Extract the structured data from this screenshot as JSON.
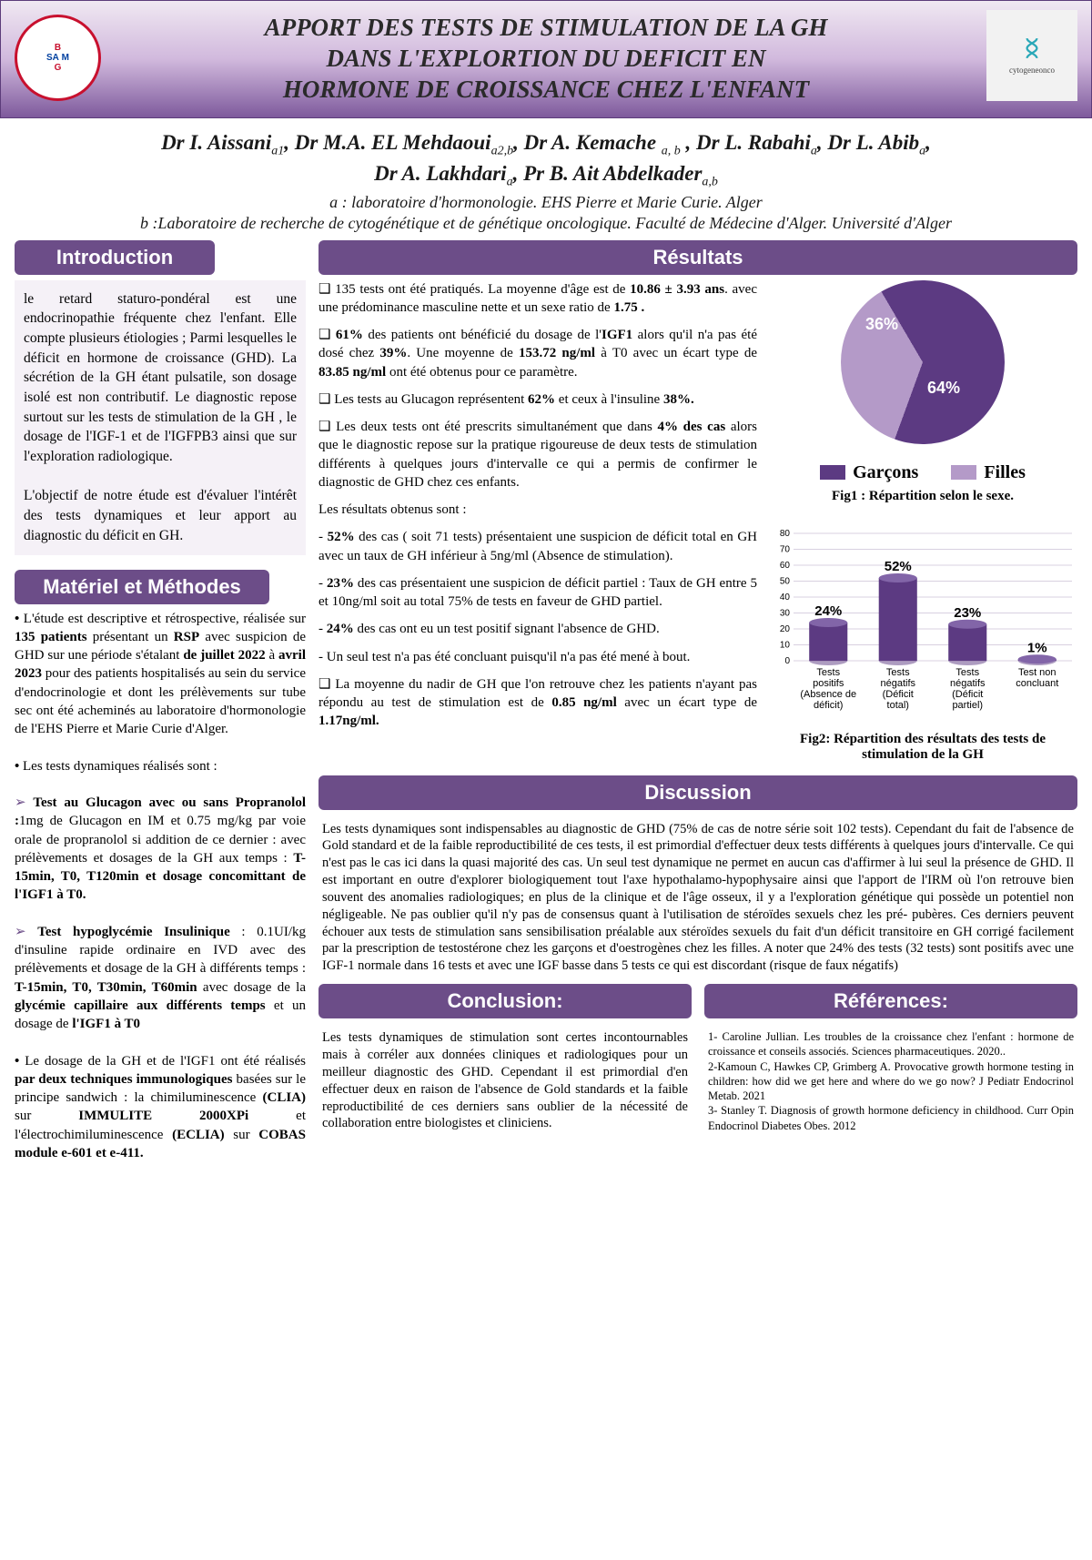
{
  "header": {
    "title_line1": "APPORT DES TESTS DE STIMULATION DE LA GH",
    "title_line2": "DANS L'EXPLORTION DU DEFICIT   EN",
    "title_line3": "HORMONE DE CROISSANCE CHEZ L'ENFANT",
    "logo_right_label": "cytogeneonco"
  },
  "authors": {
    "line1": "Dr I. Aissani",
    "a1": "a1",
    "line2": ", Dr M.A. EL Mehdaoui",
    "a2": "a2,b",
    "line3": ", Dr A. Kemache ",
    "a3": "a, b",
    "line4": " , Dr L. Rabahi",
    "line5": ", Dr L. Abib",
    "line6": "Dr A. Lakhdari",
    "line7": ", Pr B. Ait Abdelkader",
    "a_sub": "a",
    "ab_sub": "a,b",
    "affil_a": "a : laboratoire d'hormonologie. EHS Pierre et Marie Curie. Alger",
    "affil_b": "b :Laboratoire de recherche de cytogénétique et de génétique oncologique. Faculté de Médecine d'Alger. Université d'Alger"
  },
  "sections": {
    "intro_title": "Introduction",
    "intro_p1": "le retard staturo-pondéral est une endocrinopathie fréquente chez l'enfant. Elle compte plusieurs étiologies ; Parmi lesquelles le déficit en hormone de croissance (GHD). La sécrétion de la GH étant pulsatile, son dosage isolé est non contributif. Le diagnostic repose surtout sur les tests de stimulation de la GH , le dosage de l'IGF-1 et de l'IGFPB3 ainsi que sur l'exploration radiologique.",
    "intro_p2": "L'objectif de notre étude est d'évaluer l'intérêt des tests dynamiques et leur apport au diagnostic du déficit en GH.",
    "methods_title": "Matériel et Méthodes",
    "methods_b1a": "L'étude est descriptive et rétrospective, réalisée sur ",
    "methods_b1b": "135 patients",
    "methods_b1c": " présentant un ",
    "methods_b1d": "RSP",
    "methods_b1e": " avec suspicion de GHD sur une période s'étalant ",
    "methods_b1f": "de juillet 2022",
    "methods_b1g": " à ",
    "methods_b1h": "avril 2023",
    "methods_b1i": " pour des patients hospitalisés au sein du service d'endocrinologie et dont les prélèvements sur tube sec ont été acheminés au laboratoire d'hormonologie de l'EHS Pierre et Marie Curie d'Alger.",
    "methods_b2": "Les tests dynamiques réalisés sont :",
    "methods_t1a": "Test au Glucagon avec ou sans Propranolol :",
    "methods_t1b": "1mg de Glucagon en IM et 0.75 mg/kg par voie orale de propranolol si addition de ce dernier : avec prélèvements et dosages de la GH aux temps : ",
    "methods_t1c": "T-15min, T0, T120min et dosage concomittant de l'IGF1 à T0.",
    "methods_t2a": "Test hypoglycémie Insulinique",
    "methods_t2b": " : 0.1UI/kg d'insuline rapide ordinaire en IVD avec des prélèvements et dosage de la GH à différents temps : ",
    "methods_t2c": "T-15min, T0, T30min, T60min",
    "methods_t2d": " avec dosage de la ",
    "methods_t2e": "glycémie capillaire aux différents temps",
    "methods_t2f": " et un dosage de ",
    "methods_t2g": "l'IGF1 à T0",
    "methods_b3a": "Le dosage de la GH et de l'IGF1 ont été réalisés ",
    "methods_b3b": "par deux techniques immunologiques",
    "methods_b3c": " basées sur le principe sandwich : la chimiluminescence ",
    "methods_b3d": "(CLIA)",
    "methods_b3e": " sur ",
    "methods_b3f": "IMMULITE 2000XPi",
    "methods_b3g": " et l'électrochimiluminescence ",
    "methods_b3h": "(ECLIA)",
    "methods_b3i": " sur ",
    "methods_b3j": "COBAS module e-601 et e-411.",
    "results_title": "Résultats",
    "r1a": "135 tests ont été pratiqués. La moyenne d'âge est de ",
    "r1b": "10.86 ± 3.93 ans",
    "r1c": ". avec une prédominance masculine nette et un sexe ratio de ",
    "r1d": "1.75 .",
    "r2a": "61%",
    "r2b": " des patients ont bénéficié du dosage de l'",
    "r2c": "IGF1 ",
    "r2d": "alors qu'il n'a pas été dosé chez ",
    "r2e": "39%",
    "r2f": ". Une moyenne de ",
    "r2g": "153.72 ng/ml",
    "r2h": " à T0 avec un écart type de ",
    "r2i": "83.85 ng/ml",
    "r2j": " ont été obtenus pour ce paramètre.",
    "r3a": "Les tests au Glucagon représentent ",
    "r3b": "62%",
    "r3c": " et ceux à l'insuline ",
    "r3d": "38%.",
    "r4": "Les deux tests ont été prescrits simultanément que dans ",
    "r4b": "4% des cas",
    "r4c": " alors que le diagnostic repose sur la pratique rigoureuse de deux tests de stimulation différents à  quelques jours d'intervalle ce qui a permis de confirmer le diagnostic de GHD chez ces enfants.",
    "r5": "Les résultats obtenus sont :",
    "r6a": "52%",
    "r6b": " des cas ( soit 71 tests) présentaient une suspicion de déficit total en GH avec un taux de GH inférieur à 5ng/ml (Absence de stimulation).",
    "r7a": "23%",
    "r7b": " des cas présentaient une suspicion de déficit partiel : Taux de GH entre 5 et 10ng/ml soit au total 75% de tests en faveur de GHD partiel.",
    "r8a": "24%",
    "r8b": " des cas   ont eu un test positif signant l'absence de GHD.",
    "r9": "Un seul test n'a pas été concluant puisqu'il n'a pas été mené à bout.",
    "r10a": "La moyenne du nadir de GH que l'on retrouve chez les patients n'ayant pas répondu au test de stimulation est de ",
    "r10b": "0.85 ng/ml",
    "r10c": " avec un écart type de ",
    "r10d": "1.17ng/ml.",
    "fig1_caption": "Fig1 : Répartition selon le sexe.",
    "fig2_caption": "Fig2: Répartition des résultats des tests de stimulation de la GH",
    "legend_boys": "Garçons",
    "legend_girls": "Filles",
    "discussion_title": "Discussion",
    "discussion_body": "Les tests dynamiques sont indispensables au diagnostic de GHD (75% de cas de notre série soit 102 tests). Cependant du fait de l'absence de Gold standard et de la faible reproductibilité de ces tests, il est primordial d'effectuer deux tests différents à quelques jours d'intervalle. Ce qui n'est pas le cas ici dans la quasi majorité des cas. Un seul test dynamique ne permet en aucun cas d'affirmer à lui seul la présence de GHD. Il est important en outre d'explorer biologiquement tout l'axe hypothalamo-hypophysaire ainsi que l'apport de l'IRM où l'on retrouve bien souvent des anomalies radiologiques; en plus de la clinique et de l'âge osseux, il y a l'exploration génétique qui possède un potentiel non négligeable. Ne pas oublier qu'il n'y pas de consensus quant à  l'utilisation de stéroïdes sexuels chez les pré- pubères. Ces derniers peuvent échouer aux tests de stimulation sans sensibilisation préalable aux stéroïdes sexuels du fait d'un déficit transitoire en GH corrigé facilement par la prescription de testostérone chez les garçons et d'oestrogènes chez les filles. A noter que 24% des tests (32 tests) sont positifs avec une IGF-1 normale dans 16 tests et avec une IGF basse dans 5 tests ce qui est discordant (risque de faux négatifs)",
    "conclusion_title": "Conclusion:",
    "conclusion_body": "Les tests dynamiques de stimulation sont certes incontournables  mais à corréler aux données cliniques et radiologiques pour un meilleur diagnostic des GHD. Cependant il est primordial d'en effectuer deux en raison de l'absence de Gold standards et la faible reproductibilité de ces derniers sans oublier de la nécessité de collaboration entre biologistes et cliniciens.",
    "refs_title": "Références:",
    "ref1": "1- Caroline Jullian. Les troubles de la croissance chez l'enfant : hormone de croissance et conseils associés. Sciences pharmaceutiques. 2020..",
    "ref2": "2-Kamoun C, Hawkes CP, Grimberg A. Provocative growth hormone testing in children: how did we get here and where do we go now? J Pediatr Endocrinol Metab. 2021",
    "ref3": "3- Stanley T. Diagnosis of growth hormone deficiency in childhood. Curr Opin Endocrinol Diabetes Obes. 2012"
  },
  "pie_chart": {
    "type": "pie",
    "slices": [
      {
        "label": "64%",
        "value": 64,
        "color": "#5c3a82"
      },
      {
        "label": "36%",
        "value": 36,
        "color": "#b49ac8"
      }
    ],
    "legend_colors": {
      "boys": "#5c3a82",
      "girls": "#b49ac8"
    }
  },
  "bar_chart": {
    "type": "bar",
    "categories": [
      "Tests positifs (Absence de déficit)",
      "Tests négatifs (Déficit total)",
      "Tests négatifs (Déficit partiel)",
      "Test non concluant"
    ],
    "values": [
      24,
      52,
      23,
      1
    ],
    "value_labels": [
      "24%",
      "52%",
      "23%",
      "1%"
    ],
    "bar_color": "#5c3a82",
    "ylim": [
      0,
      80
    ],
    "ytick_step": 10,
    "yticks": [
      "0",
      "10",
      "20",
      "30",
      "40",
      "50",
      "60",
      "70",
      "80"
    ],
    "axis_fontsize": 10,
    "label_fontsize": 11,
    "value_label_fontsize": 15,
    "background": "#ffffff",
    "grid_color": "#d8d0e0"
  }
}
